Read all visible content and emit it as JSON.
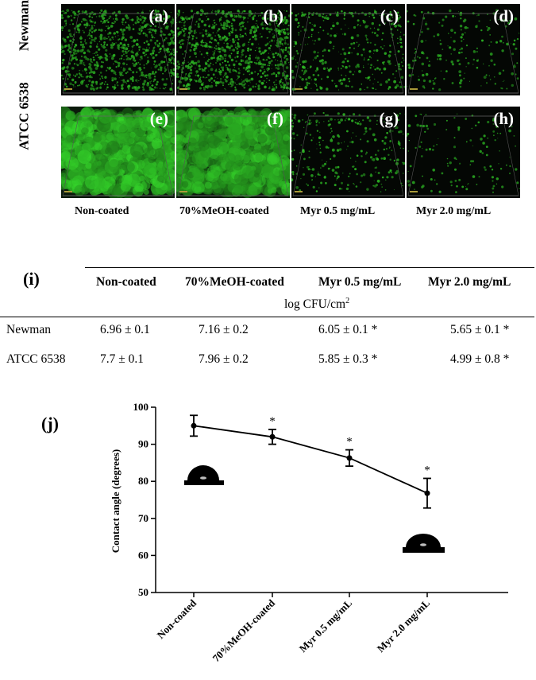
{
  "figure": {
    "panels": [
      {
        "tag": "(a)"
      },
      {
        "tag": "(b)"
      },
      {
        "tag": "(c)"
      },
      {
        "tag": "(d)"
      },
      {
        "tag": "(e)"
      },
      {
        "tag": "(f)"
      },
      {
        "tag": "(g)"
      },
      {
        "tag": "(h)"
      }
    ],
    "row_labels": [
      "Newman",
      "ATCC 6538"
    ],
    "column_labels": [
      "Non-coated",
      "70%MeOH-coated",
      "Myr 0.5 mg/mL",
      "Myr 2.0 mg/mL"
    ]
  },
  "table": {
    "panel_tag": "(i)",
    "headers": [
      "Non-coated",
      "70%MeOH-coated",
      "Myr 0.5 mg/mL",
      "Myr 2.0 mg/mL"
    ],
    "unit": "log CFU/cm",
    "unit_sup": "2",
    "rows": [
      {
        "name": "Newman",
        "cells": [
          "6.96 ± 0.1",
          "7.16 ± 0.2",
          "6.05 ± 0.1 *",
          "5.65 ± 0.1 *"
        ]
      },
      {
        "name": "ATCC 6538",
        "cells": [
          "7.7 ± 0.1",
          "7.96 ± 0.2",
          "5.85 ± 0.3 *",
          "4.99 ± 0.8 *"
        ]
      }
    ]
  },
  "chart_data": {
    "panel_tag": "(j)",
    "type": "line",
    "categories": [
      "Non-coated",
      "70%MeOH-coated",
      "Myr 0.5 mg/mL",
      "Myr 2.0 mg/mL"
    ],
    "values": [
      95,
      92,
      86.3,
      76.8
    ],
    "errors": [
      2.8,
      2.0,
      2.2,
      4.0
    ],
    "significance": [
      "",
      "*",
      "*",
      "*"
    ],
    "ylabel": "Contact angle (degrees)",
    "ylim": [
      50,
      100
    ],
    "yticks": [
      50,
      60,
      70,
      80,
      90,
      100
    ],
    "grid": false,
    "line_color": "#000000"
  }
}
